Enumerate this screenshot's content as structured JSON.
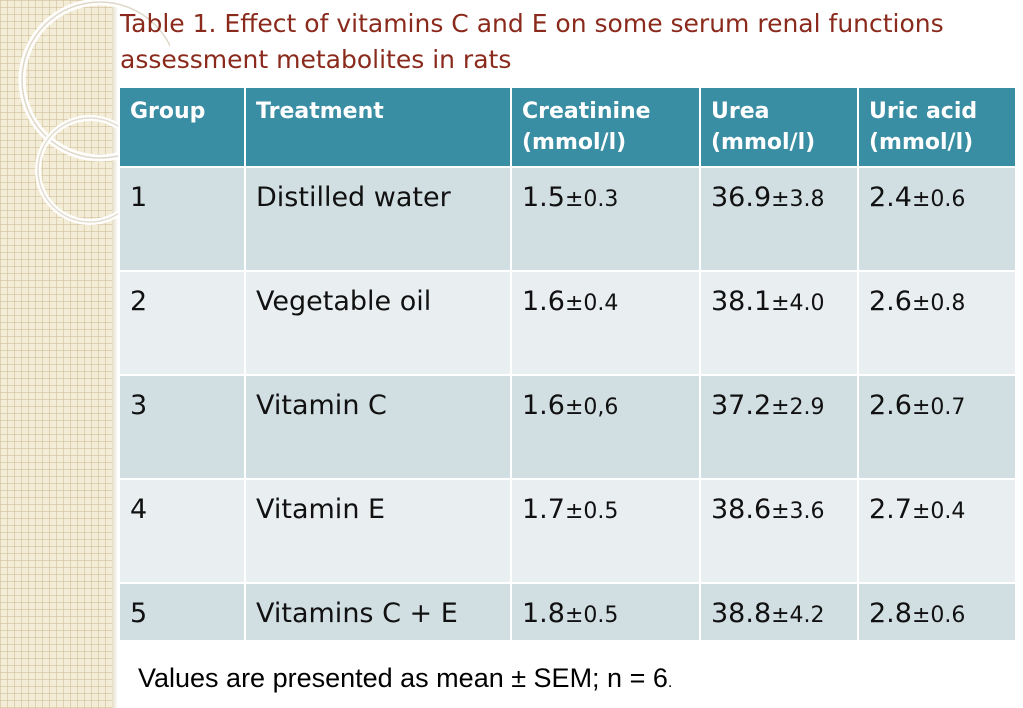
{
  "title": "Table 1. Effect of vitamins C and E on some serum renal functions assessment metabolites in rats",
  "table": {
    "headers": {
      "group": "Group",
      "treatment": "Treatment",
      "creatinine_line1": "Creatinine",
      "creatinine_line2": "(mmol/l)",
      "urea_line1": "Urea",
      "urea_line2": "(mmol/l)",
      "uric_line1": "Uric acid",
      "uric_line2": "(mmol/l)"
    },
    "rows": [
      {
        "group": "1",
        "treatment": "Distilled water",
        "creatinine_mean": "1.5",
        "creatinine_sem": "±0.3",
        "urea_mean": "36.9",
        "urea_sem": "±3.8",
        "uric_mean": "2.4",
        "uric_sem": "±0.6"
      },
      {
        "group": "2",
        "treatment": "Vegetable oil",
        "creatinine_mean": "1.6",
        "creatinine_sem": "±0.4",
        "urea_mean": "38.1",
        "urea_sem": "±4.0",
        "uric_mean": "2.6",
        "uric_sem": "±0.8"
      },
      {
        "group": "3",
        "treatment": "Vitamin C",
        "creatinine_mean": "1.6",
        "creatinine_sem": "±0,6",
        "urea_mean": "37.2",
        "urea_sem": "±2.9",
        "uric_mean": "2.6",
        "uric_sem": "±0.7"
      },
      {
        "group": "4",
        "treatment": "Vitamin E",
        "creatinine_mean": "1.7",
        "creatinine_sem": "±0.5",
        "urea_mean": "38.6",
        "urea_sem": "±3.6",
        "uric_mean": "2.7",
        "uric_sem": "±0.4"
      },
      {
        "group": "5",
        "treatment": "Vitamins C + E",
        "creatinine_mean": "1.8",
        "creatinine_sem": "±0.5",
        "urea_mean": "38.8",
        "urea_sem": "±4.2",
        "uric_mean": "2.8",
        "uric_sem": "±0.6"
      }
    ]
  },
  "footnote": {
    "text": "Values are presented as mean ± SEM; n = 6",
    "period": "."
  },
  "colors": {
    "title": "#8a2a1c",
    "header_bg": "#3a8ea3",
    "row_dark": "#d1dfe3",
    "row_light": "#e9eef0"
  }
}
